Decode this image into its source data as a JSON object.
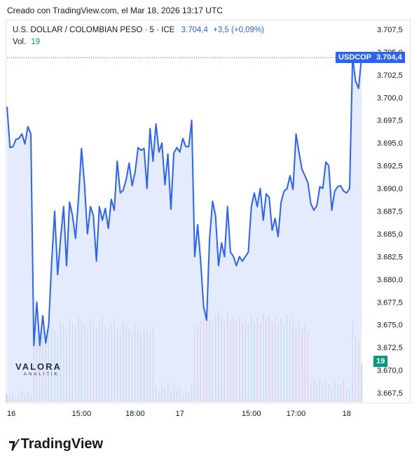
{
  "header": {
    "text": "Creado con TradingView.com, el Mar 18, 2026 13:17 UTC"
  },
  "legend": {
    "symbol": "U.S. DOLLAR / COLOMBIAN PESO · 5 · ICE",
    "price": "3.704,4",
    "change": "+3,5 (+0,09%)",
    "vol_label": "Vol.",
    "vol_value": "19"
  },
  "tags": {
    "symbol": "USDCOP",
    "price": "3.704,4",
    "volume": "19"
  },
  "watermark": {
    "name": "VALORA",
    "sub": "ANALITIK"
  },
  "logo": {
    "icon": "tradingview-logo-icon",
    "text": "TradingView"
  },
  "colors": {
    "line": "#2962ff",
    "fill": "#dbe4fb",
    "up_vol": "#089981",
    "down_vol": "#f23645"
  },
  "chart_data": {
    "type": "area",
    "ylim": [
      3666.5,
      3708.5
    ],
    "y_ticks": [
      "3.707,5",
      "3.705,0",
      "3.702,5",
      "3.700,0",
      "3.697,5",
      "3.695,0",
      "3.692,5",
      "3.690,0",
      "3.687,5",
      "3.685,0",
      "3.682,5",
      "3.680,0",
      "3.677,5",
      "3.675,0",
      "3.672,5",
      "3.670,0",
      "3.667,5"
    ],
    "y_tick_values": [
      3707.5,
      3705,
      3702.5,
      3700,
      3697.5,
      3695,
      3692.5,
      3690,
      3687.5,
      3685,
      3682.5,
      3680,
      3677.5,
      3675,
      3672.5,
      3670,
      3667.5
    ],
    "x_ticks": [
      {
        "label": "16",
        "i": 0
      },
      {
        "label": "15:00",
        "i": 25
      },
      {
        "label": "18:00",
        "i": 43
      },
      {
        "label": "17",
        "i": 58
      },
      {
        "label": "15:00",
        "i": 82
      },
      {
        "label": "17:00",
        "i": 97
      },
      {
        "label": "18",
        "i": 114
      }
    ],
    "n": 120,
    "price": [
      3699.0,
      3694.5,
      3694.6,
      3695.4,
      3695.5,
      3696.0,
      3694.9,
      3696.8,
      3696.0,
      3672.7,
      3677.5,
      3672.7,
      3676.0,
      3673.0,
      3675.0,
      3682.0,
      3687.5,
      3680.5,
      3684.5,
      3688.0,
      3681.5,
      3688.5,
      3687.0,
      3684.5,
      3689.0,
      3694.4,
      3690.5,
      3685.0,
      3688.0,
      3687.0,
      3682.0,
      3688.0,
      3686.5,
      3687.8,
      3685.6,
      3688.8,
      3687.6,
      3693.0,
      3689.5,
      3689.8,
      3691.0,
      3692.8,
      3690.3,
      3691.8,
      3694.5,
      3694.2,
      3694.4,
      3690.0,
      3696.6,
      3693.0,
      3697.1,
      3694.0,
      3695.0,
      3690.4,
      3693.8,
      3687.7,
      3693.9,
      3694.5,
      3694.0,
      3695.5,
      3694.6,
      3694.6,
      3697.5,
      3682.5,
      3686.0,
      3682.0,
      3677.0,
      3675.5,
      3684.5,
      3688.6,
      3687.0,
      3681.5,
      3684.0,
      3682.5,
      3688.0,
      3683.0,
      3682.5,
      3681.5,
      3682.5,
      3682.0,
      3682.5,
      3683.0,
      3688.0,
      3689.5,
      3688.0,
      3690.0,
      3686.5,
      3689.4,
      3689.0,
      3685.4,
      3686.7,
      3684.7,
      3688.5,
      3689.7,
      3690.0,
      3691.4,
      3689.9,
      3696.0,
      3694.0,
      3692.1,
      3691.4,
      3690.6,
      3688.3,
      3687.6,
      3688.1,
      3690.2,
      3690.0,
      3692.9,
      3692.5,
      3687.6,
      3689.7,
      3690.2,
      3690.3,
      3689.7,
      3689.5,
      3690.0,
      3704.5,
      3701.8,
      3701.0,
      3704.4
    ],
    "volume": [
      4,
      3,
      5,
      2,
      4,
      6,
      3,
      5,
      4,
      30,
      32,
      28,
      35,
      30,
      34,
      38,
      36,
      33,
      40,
      38,
      35,
      41,
      39,
      37,
      42,
      40,
      38,
      36,
      41,
      39,
      37,
      40,
      42,
      38,
      36,
      39,
      41,
      37,
      35,
      40,
      38,
      36,
      34,
      39,
      37,
      35,
      38,
      36,
      34,
      37,
      8,
      6,
      9,
      7,
      10,
      5,
      8,
      6,
      7,
      4,
      6,
      5,
      9,
      36,
      38,
      40,
      42,
      44,
      41,
      39,
      43,
      45,
      42,
      40,
      44,
      41,
      43,
      40,
      42,
      39,
      41,
      38,
      43,
      40,
      42,
      39,
      44,
      41,
      43,
      40,
      42,
      38,
      41,
      39,
      43,
      40,
      42,
      37,
      39,
      36,
      38,
      35,
      10,
      12,
      9,
      11,
      8,
      10,
      9,
      7,
      10,
      8,
      9,
      11,
      7,
      6,
      40,
      33,
      30,
      19
    ]
  }
}
